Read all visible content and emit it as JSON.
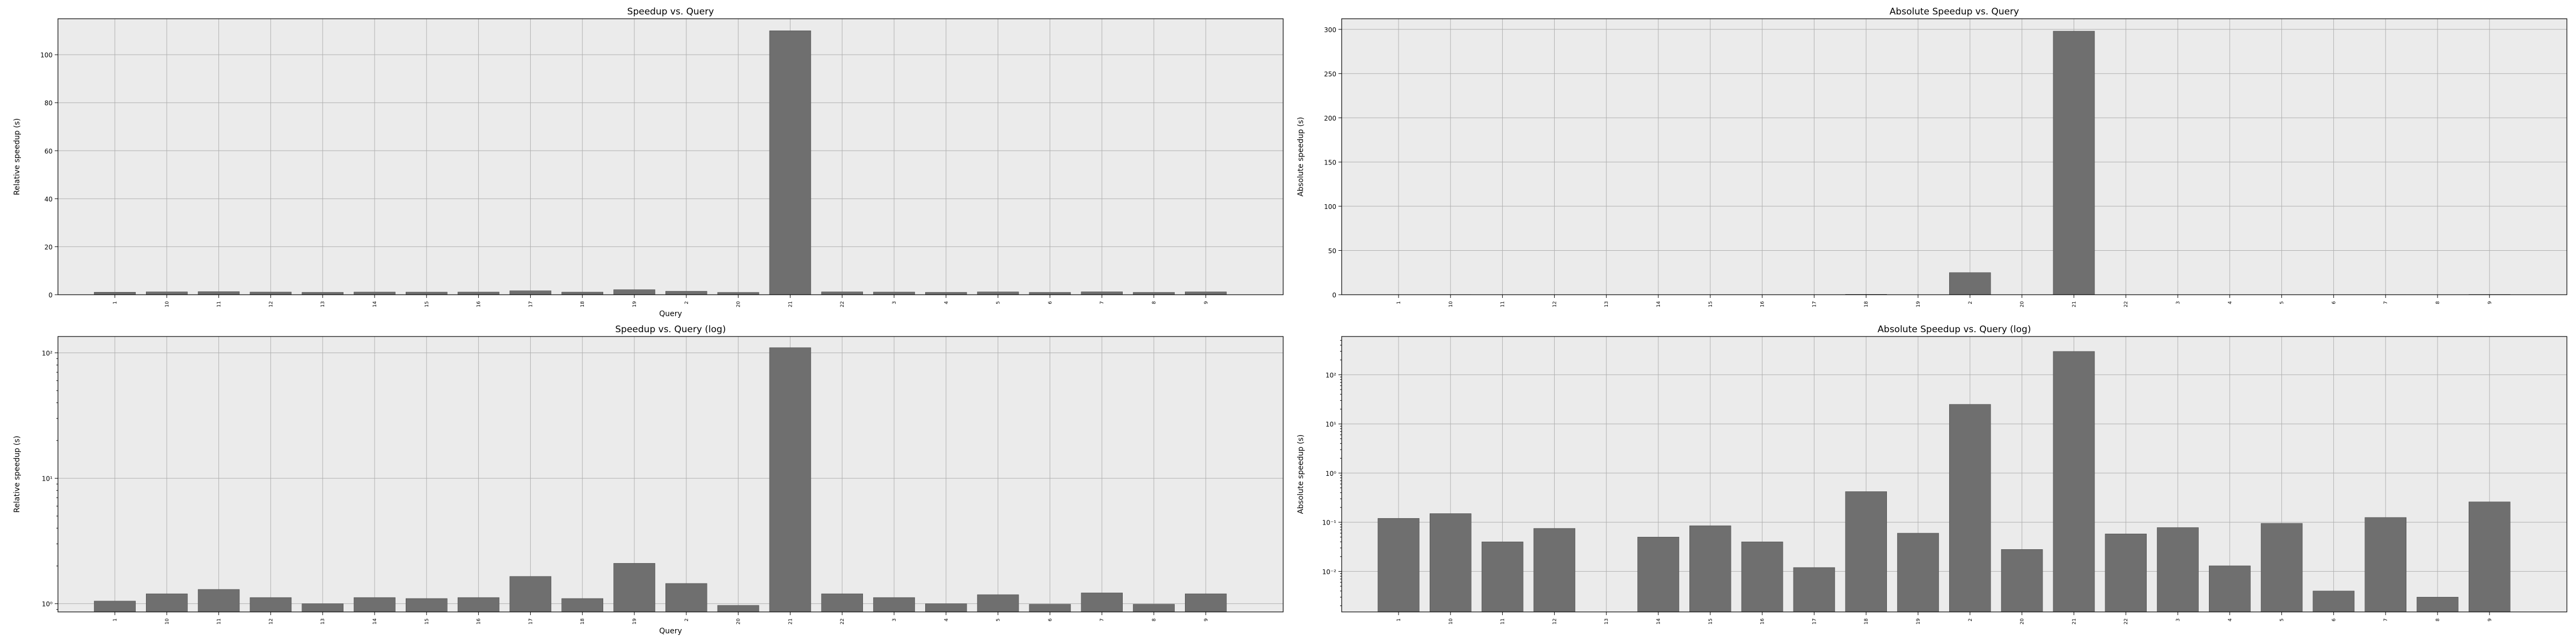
{
  "chart_data": [
    {
      "id": "rel",
      "type": "bar",
      "title": "Speedup vs. Query",
      "xlabel": "Query",
      "ylabel": "Relative speedup (s)",
      "scale": "linear",
      "ylim": [
        0,
        115
      ],
      "yticks": [
        0,
        20,
        40,
        60,
        80,
        100
      ],
      "ytick_labels": [
        "0",
        "20",
        "40",
        "60",
        "80",
        "100"
      ],
      "grid": true,
      "categories": [
        "1",
        "10",
        "11",
        "12",
        "13",
        "14",
        "15",
        "16",
        "17",
        "18",
        "19",
        "2",
        "20",
        "21",
        "22",
        "3",
        "4",
        "5",
        "6",
        "7",
        "8",
        "9"
      ],
      "values": [
        1.05,
        1.2,
        1.3,
        1.12,
        1.0,
        1.12,
        1.1,
        1.12,
        1.65,
        1.1,
        2.1,
        1.45,
        0.97,
        110,
        1.2,
        1.12,
        1.0,
        1.18,
        0.99,
        1.22,
        0.99,
        1.2
      ]
    },
    {
      "id": "abs",
      "type": "bar",
      "title": "Absolute Speedup vs. Query",
      "xlabel": "",
      "ylabel": "Absolute speedup (s)",
      "scale": "linear",
      "ylim": [
        0,
        312
      ],
      "yticks": [
        0,
        50,
        100,
        150,
        200,
        250,
        300
      ],
      "ytick_labels": [
        "0",
        "50",
        "100",
        "150",
        "200",
        "250",
        "300"
      ],
      "grid": true,
      "categories": [
        "1",
        "10",
        "11",
        "12",
        "13",
        "14",
        "15",
        "16",
        "17",
        "18",
        "19",
        "2",
        "20",
        "21",
        "22",
        "3",
        "4",
        "5",
        "6",
        "7",
        "8",
        "9"
      ],
      "values": [
        0.12,
        0.15,
        0.04,
        0.075,
        0.0015,
        0.05,
        0.085,
        0.04,
        0.012,
        0.42,
        0.06,
        25,
        0.028,
        298,
        0.058,
        0.078,
        0.013,
        0.095,
        0.004,
        0.125,
        0.003,
        0.26
      ]
    },
    {
      "id": "rellog",
      "type": "bar",
      "title": "Speedup vs. Query (log)",
      "xlabel": "Query",
      "ylabel": "Relative speedup (s)",
      "scale": "log",
      "ylim": [
        0.86,
        135
      ],
      "yticks": [
        1,
        10,
        100
      ],
      "ytick_labels": [
        "10⁰",
        "10¹",
        "10²"
      ],
      "grid": true,
      "categories": [
        "1",
        "10",
        "11",
        "12",
        "13",
        "14",
        "15",
        "16",
        "17",
        "18",
        "19",
        "2",
        "20",
        "21",
        "22",
        "3",
        "4",
        "5",
        "6",
        "7",
        "8",
        "9"
      ],
      "values": [
        1.05,
        1.2,
        1.3,
        1.12,
        1.0,
        1.12,
        1.1,
        1.12,
        1.65,
        1.1,
        2.1,
        1.45,
        0.97,
        110,
        1.2,
        1.12,
        1.0,
        1.18,
        0.99,
        1.22,
        0.99,
        1.2
      ]
    },
    {
      "id": "abslog",
      "type": "bar",
      "title": "Absolute Speedup vs. Query (log)",
      "xlabel": "",
      "ylabel": "Absolute speedup (s)",
      "scale": "log",
      "ylim": [
        0.0015,
        600
      ],
      "yticks": [
        0.01,
        0.1,
        1,
        10,
        100
      ],
      "ytick_labels": [
        "10⁻²",
        "10⁻¹",
        "10⁰",
        "10¹",
        "10²"
      ],
      "grid": true,
      "categories": [
        "1",
        "10",
        "11",
        "12",
        "13",
        "14",
        "15",
        "16",
        "17",
        "18",
        "19",
        "2",
        "20",
        "21",
        "22",
        "3",
        "4",
        "5",
        "6",
        "7",
        "8",
        "9"
      ],
      "values": [
        0.12,
        0.15,
        0.04,
        0.075,
        0.0015,
        0.05,
        0.085,
        0.04,
        0.012,
        0.42,
        0.06,
        25,
        0.028,
        298,
        0.058,
        0.078,
        0.013,
        0.095,
        0.004,
        0.125,
        0.003,
        0.26
      ]
    }
  ]
}
